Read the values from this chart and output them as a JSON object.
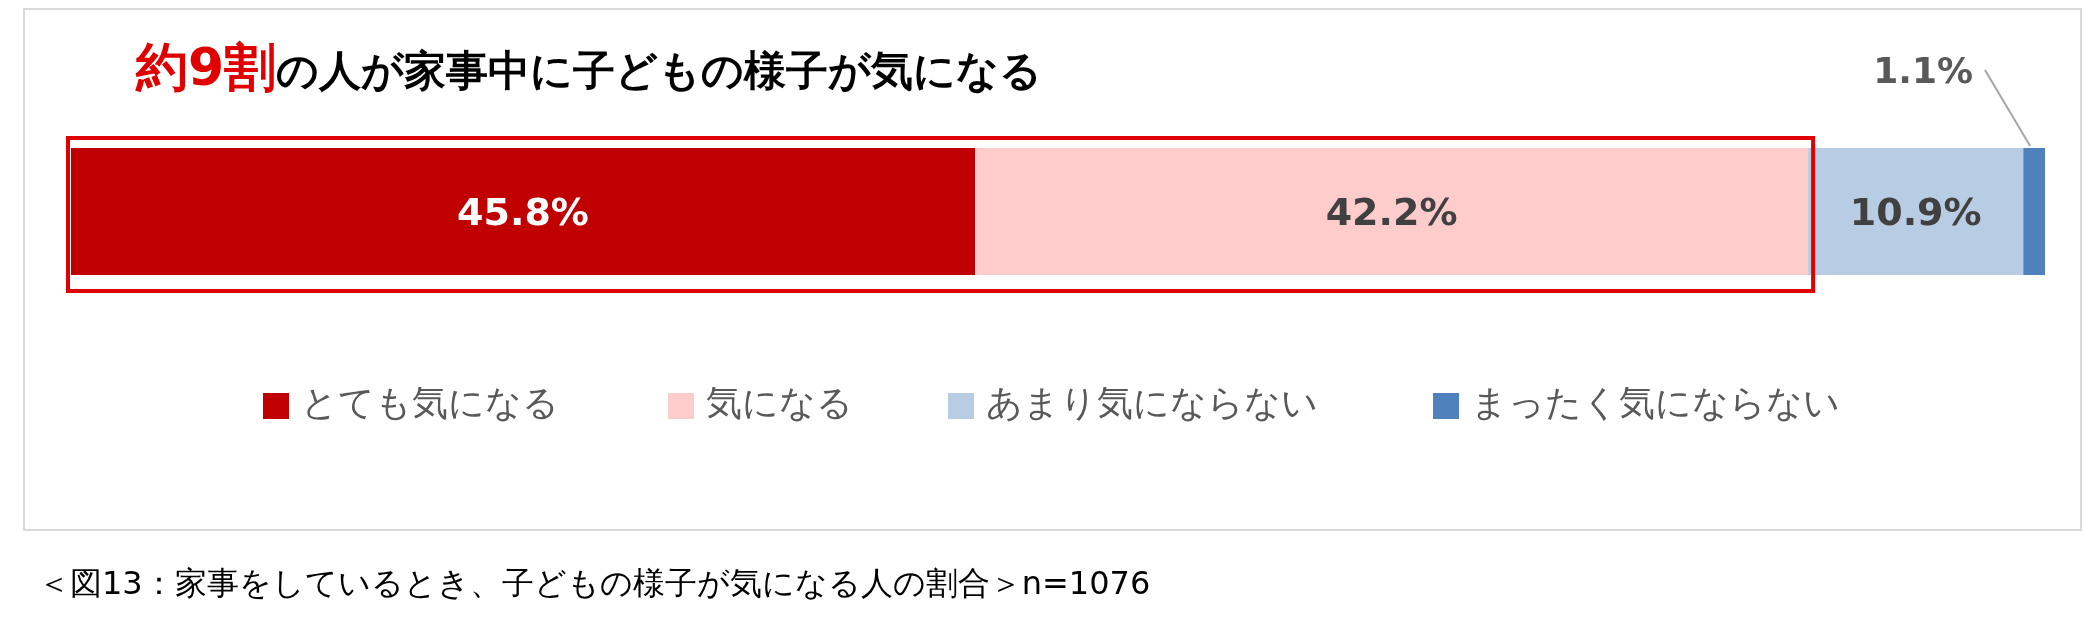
{
  "chart_data": {
    "type": "bar",
    "orientation": "horizontal",
    "stacked": true,
    "title": "約9割の人が家事中に子どもの様子が気になる",
    "categories": [
      null
    ],
    "series": [
      {
        "name": "とても気になる",
        "color": "#c00000",
        "values": [
          45.8
        ],
        "value_labels": [
          "45.8%"
        ]
      },
      {
        "name": "気になる",
        "color": "#ffcccc",
        "values": [
          42.2
        ],
        "value_labels": [
          "42.2%"
        ]
      },
      {
        "name": "あまり気にならない",
        "color": "#b8cce4",
        "values": [
          10.9
        ],
        "value_labels": [
          "10.9%"
        ]
      },
      {
        "name": "まったく気にならない",
        "color": "#4f81bd",
        "values": [
          1.1
        ],
        "value_labels": [
          "1.1%"
        ]
      }
    ],
    "legend": "bottom",
    "annotations": [
      "＜図13：家事をしているとき、子どもの様子が気になる人の割合＞n=1076"
    ]
  }
}
